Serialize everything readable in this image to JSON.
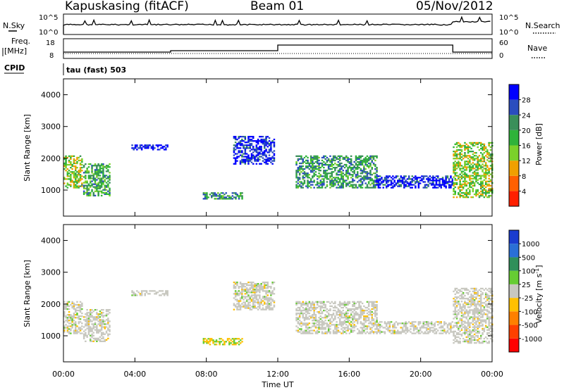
{
  "header": {
    "station": "Kapuskasing (fitACF)",
    "beam": "Beam 01",
    "date": "05/Nov/2012"
  },
  "strips": {
    "nsky_label": "N.Sky",
    "nsky_ticks": [
      "10^5",
      "10^0"
    ],
    "nsearch_label": "N.Search",
    "freq_label_1": "Freq.",
    "freq_label_2": "[MHz]",
    "freq_ticks": [
      "18",
      "8"
    ],
    "nave_label": "Nave",
    "nave_ticks": [
      "60",
      "0"
    ],
    "cpid_label": "CPID",
    "cpid_value": "tau (fast) 503"
  },
  "palette": {
    "power": [
      "#0000ff",
      "#2a4dbf",
      "#3a8f5a",
      "#2fb33a",
      "#7bd12a",
      "#f0a000",
      "#ff6000",
      "#ff2000"
    ],
    "velocity": [
      "#1a3ccf",
      "#2a6fd6",
      "#2f8f5a",
      "#66cc33",
      "#c8c8c0",
      "#ffc000",
      "#ff8000",
      "#ff4000",
      "#ff0000"
    ]
  },
  "chart_data": [
    {
      "type": "heatmap",
      "name": "power-panel",
      "xlabel": "Time UT",
      "ylabel": "Slant Range [km]",
      "xlim": [
        0,
        24
      ],
      "ylim": [
        180,
        4500
      ],
      "yticks": [
        "4000",
        "3000",
        "2000",
        "1000"
      ],
      "xticks": [
        "00:00",
        "04:00",
        "08:00",
        "12:00",
        "16:00",
        "20:00",
        "00:00"
      ],
      "colorbar_label": "Power [dB]",
      "colorbar_ticks": [
        "28",
        "24",
        "20",
        "16",
        "12",
        "8",
        "4"
      ],
      "regions": [
        {
          "t": [
            0.0,
            1.0
          ],
          "r": [
            1050,
            2050
          ],
          "level": 0.55
        },
        {
          "t": [
            1.1,
            2.6
          ],
          "r": [
            800,
            1800
          ],
          "level": 0.4
        },
        {
          "t": [
            3.8,
            5.8
          ],
          "r": [
            2250,
            2400
          ],
          "level": 0.05
        },
        {
          "t": [
            7.8,
            10.0
          ],
          "r": [
            700,
            900
          ],
          "level": 0.35
        },
        {
          "t": [
            9.5,
            11.8
          ],
          "r": [
            1800,
            2700
          ],
          "level": 0.1
        },
        {
          "t": [
            13.0,
            17.5
          ],
          "r": [
            1050,
            2050
          ],
          "level": 0.35
        },
        {
          "t": [
            17.5,
            21.8
          ],
          "r": [
            1050,
            1450
          ],
          "level": 0.1
        },
        {
          "t": [
            21.8,
            24.0
          ],
          "r": [
            750,
            2500
          ],
          "level": 0.55
        }
      ]
    },
    {
      "type": "heatmap",
      "name": "velocity-panel",
      "xlabel": "Time UT",
      "ylabel": "Slant Range [km]",
      "xlim": [
        0,
        24
      ],
      "ylim": [
        180,
        4500
      ],
      "yticks": [
        "4000",
        "3000",
        "2000",
        "1000"
      ],
      "xticks": [
        "00:00",
        "04:00",
        "08:00",
        "12:00",
        "16:00",
        "20:00",
        "00:00"
      ],
      "colorbar_label": "Velocity",
      "colorbar_unit": "[m s",
      "colorbar_unit_exp": "-1",
      "colorbar_unit_close": "]",
      "colorbar_ticks": [
        "1000",
        "500",
        "100",
        "25",
        "-25",
        "-100",
        "-500",
        "-1000"
      ],
      "regions": [
        {
          "t": [
            0.0,
            1.0
          ],
          "r": [
            1050,
            2050
          ],
          "level": 0.5
        },
        {
          "t": [
            1.1,
            2.6
          ],
          "r": [
            800,
            1800
          ],
          "level": 0.5
        },
        {
          "t": [
            3.8,
            5.8
          ],
          "r": [
            2250,
            2400
          ],
          "level": 0.5
        },
        {
          "t": [
            7.8,
            10.0
          ],
          "r": [
            700,
            900
          ],
          "level": 0.7
        },
        {
          "t": [
            9.5,
            11.8
          ],
          "r": [
            1800,
            2700
          ],
          "level": 0.5
        },
        {
          "t": [
            13.0,
            17.5
          ],
          "r": [
            1050,
            2050
          ],
          "level": 0.5
        },
        {
          "t": [
            17.5,
            21.8
          ],
          "r": [
            1050,
            1450
          ],
          "level": 0.5
        },
        {
          "t": [
            21.8,
            24.0
          ],
          "r": [
            750,
            2500
          ],
          "level": 0.5
        }
      ]
    }
  ]
}
